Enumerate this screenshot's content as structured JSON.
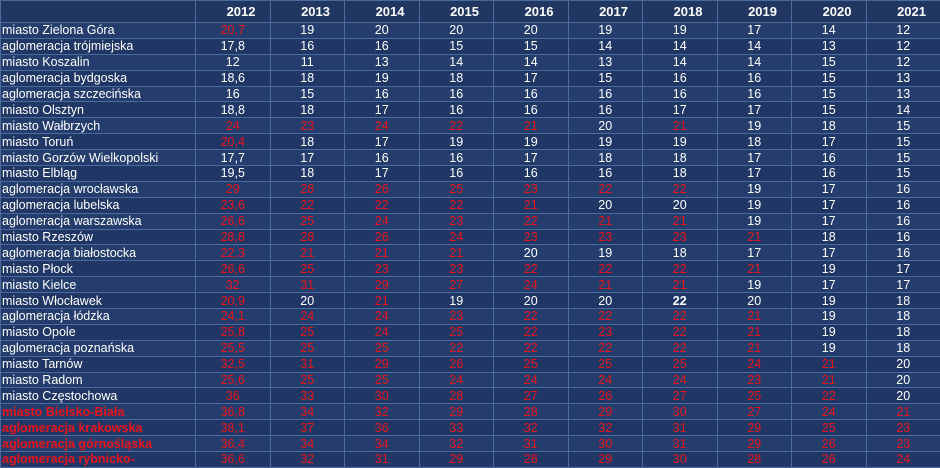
{
  "table": {
    "corner": "",
    "years": [
      "2012",
      "2013",
      "2014",
      "2015",
      "2016",
      "2017",
      "2018",
      "2019",
      "2020",
      "2021"
    ],
    "rows": [
      {
        "name": "miasto Zielona Góra",
        "name_red": false,
        "values": [
          "20,7",
          "19",
          "20",
          "20",
          "20",
          "19",
          "19",
          "17",
          "14",
          "12"
        ],
        "red": [
          true,
          false,
          false,
          false,
          false,
          false,
          false,
          false,
          false,
          false
        ]
      },
      {
        "name": " aglomeracja trójmiejska",
        "name_red": false,
        "values": [
          "17,8",
          "16",
          "16",
          "15",
          "15",
          "14",
          "14",
          "14",
          "13",
          "12"
        ],
        "red": [
          false,
          false,
          false,
          false,
          false,
          false,
          false,
          false,
          false,
          false
        ]
      },
      {
        "name": "miasto Koszalin",
        "name_red": false,
        "values": [
          "12",
          "11",
          "13",
          "14",
          "14",
          "13",
          "14",
          "14",
          "15",
          "12"
        ],
        "red": [
          false,
          false,
          false,
          false,
          false,
          false,
          false,
          false,
          false,
          false
        ]
      },
      {
        "name": "aglomeracja bydgoska",
        "name_red": false,
        "values": [
          "18,6",
          "18",
          "19",
          "18",
          "17",
          "15",
          "16",
          "16",
          "15",
          "13"
        ],
        "red": [
          false,
          false,
          false,
          false,
          false,
          false,
          false,
          false,
          false,
          false
        ]
      },
      {
        "name": "aglomeracja szczecińska",
        "name_red": false,
        "values": [
          "16",
          "15",
          "16",
          "16",
          "16",
          "16",
          "16",
          "16",
          "15",
          "13"
        ],
        "red": [
          false,
          false,
          false,
          false,
          false,
          false,
          false,
          false,
          false,
          false
        ]
      },
      {
        "name": " miasto Olsztyn",
        "name_red": false,
        "values": [
          "18,8",
          "18",
          "17",
          "16",
          "16",
          "16",
          "17",
          "17",
          "15",
          "14"
        ],
        "red": [
          false,
          false,
          false,
          false,
          false,
          false,
          false,
          false,
          false,
          false
        ]
      },
      {
        "name": "miasto Wałbrzych",
        "name_red": false,
        "values": [
          "24",
          "23",
          "24",
          "22",
          "21",
          "20",
          "21",
          "19",
          "18",
          "15"
        ],
        "red": [
          true,
          true,
          true,
          true,
          true,
          false,
          true,
          false,
          false,
          false
        ]
      },
      {
        "name": "miasto Toruń",
        "name_red": false,
        "values": [
          "20,4",
          "18",
          "17",
          "19",
          "19",
          "19",
          "19",
          "18",
          "17",
          "15"
        ],
        "red": [
          true,
          false,
          false,
          false,
          false,
          false,
          false,
          false,
          false,
          false
        ]
      },
      {
        "name": " miasto Gorzów Wielkopolski",
        "name_red": false,
        "values": [
          "17,7",
          "17",
          "16",
          "16",
          "17",
          "18",
          "18",
          "17",
          "16",
          "15"
        ],
        "red": [
          false,
          false,
          false,
          false,
          false,
          false,
          false,
          false,
          false,
          false
        ]
      },
      {
        "name": " miasto Elbląg",
        "name_red": false,
        "values": [
          "19,5",
          "18",
          "17",
          "16",
          "16",
          "16",
          "18",
          "17",
          "16",
          "15"
        ],
        "red": [
          false,
          false,
          false,
          false,
          false,
          false,
          false,
          false,
          false,
          false
        ]
      },
      {
        "name": "aglomeracja wrocławska",
        "name_red": false,
        "values": [
          "29",
          "28",
          "26",
          "25",
          "23",
          "22",
          "22",
          "19",
          "17",
          "16"
        ],
        "red": [
          true,
          true,
          true,
          true,
          true,
          true,
          true,
          false,
          false,
          false
        ]
      },
      {
        "name": "aglomeracja lubelska",
        "name_red": false,
        "values": [
          "23,6",
          "22",
          "22",
          "22",
          "21",
          "20",
          "20",
          "19",
          "17",
          "16"
        ],
        "red": [
          true,
          true,
          true,
          true,
          true,
          false,
          false,
          false,
          false,
          false
        ]
      },
      {
        "name": "aglomeracja warszawska",
        "name_red": false,
        "values": [
          "26,6",
          "25",
          "24",
          "23",
          "22",
          "21",
          "21",
          "19",
          "17",
          "16"
        ],
        "red": [
          true,
          true,
          true,
          true,
          true,
          true,
          true,
          false,
          false,
          false
        ]
      },
      {
        "name": "miasto Rzeszów",
        "name_red": false,
        "values": [
          "28,8",
          "28",
          "26",
          "24",
          "23",
          "23",
          "23",
          "21",
          "18",
          "16"
        ],
        "red": [
          true,
          true,
          true,
          true,
          true,
          true,
          true,
          true,
          false,
          false
        ]
      },
      {
        "name": "aglomeracja białostocka",
        "name_red": false,
        "values": [
          "22,3",
          "21",
          "21",
          "21",
          "20",
          "19",
          "18",
          "17",
          "17",
          "16"
        ],
        "red": [
          true,
          true,
          true,
          true,
          false,
          false,
          false,
          false,
          false,
          false
        ]
      },
      {
        "name": "miasto Płock",
        "name_red": false,
        "values": [
          "26,6",
          "25",
          "23",
          "23",
          "22",
          "22",
          "22",
          "21",
          "19",
          "17"
        ],
        "red": [
          true,
          true,
          true,
          true,
          true,
          true,
          true,
          true,
          false,
          false
        ]
      },
      {
        "name": "miasto Kielce",
        "name_red": false,
        "values": [
          "32",
          "31",
          "29",
          "27",
          "24",
          "21",
          "21",
          "19",
          "17",
          "17"
        ],
        "red": [
          true,
          true,
          true,
          true,
          true,
          true,
          true,
          false,
          false,
          false
        ]
      },
      {
        "name": " miasto Włocławek",
        "name_red": false,
        "values": [
          "20,9",
          "20",
          "21",
          "19",
          "20",
          "20",
          "22",
          "20",
          "19",
          "18"
        ],
        "red": [
          true,
          false,
          true,
          false,
          false,
          false,
          false,
          false,
          false,
          false
        ],
        "bold": [
          false,
          false,
          false,
          false,
          false,
          false,
          true,
          false,
          false,
          false
        ]
      },
      {
        "name": "aglomeracja łódzka",
        "name_red": false,
        "values": [
          "24,1",
          "24",
          "24",
          "23",
          "22",
          "22",
          "22",
          "21",
          "19",
          "18"
        ],
        "red": [
          true,
          true,
          true,
          true,
          true,
          true,
          true,
          true,
          false,
          false
        ]
      },
      {
        "name": "miasto Opole",
        "name_red": false,
        "values": [
          "25,8",
          "25",
          "24",
          "25",
          "22",
          "23",
          "22",
          "21",
          "19",
          "18"
        ],
        "red": [
          true,
          true,
          true,
          true,
          true,
          true,
          true,
          true,
          false,
          false
        ]
      },
      {
        "name": "aglomeracja poznańska",
        "name_red": false,
        "values": [
          "25,5",
          "25",
          "25",
          "22",
          "22",
          "22",
          "22",
          "21",
          "19",
          "18"
        ],
        "red": [
          true,
          true,
          true,
          true,
          true,
          true,
          true,
          true,
          false,
          false
        ]
      },
      {
        "name": "miasto Tarnów",
        "name_red": false,
        "values": [
          "32,5",
          "31",
          "29",
          "26",
          "25",
          "25",
          "25",
          "24",
          "21",
          "20"
        ],
        "red": [
          true,
          true,
          true,
          true,
          true,
          true,
          true,
          true,
          true,
          false
        ]
      },
      {
        "name": "miasto Radom",
        "name_red": false,
        "values": [
          "25,6",
          "25",
          "25",
          "24",
          "24",
          "24",
          "24",
          "23",
          "21",
          "20"
        ],
        "red": [
          true,
          true,
          true,
          true,
          true,
          true,
          true,
          true,
          true,
          false
        ]
      },
      {
        "name": "miasto Częstochowa",
        "name_red": false,
        "values": [
          "36",
          "33",
          "30",
          "28",
          "27",
          "26",
          "27",
          "25",
          "22",
          "20"
        ],
        "red": [
          true,
          true,
          true,
          true,
          true,
          true,
          true,
          true,
          true,
          false
        ]
      },
      {
        "name": "miasto Bielsko-Biała",
        "name_red": true,
        "values": [
          "36,8",
          "34",
          "32",
          "29",
          "28",
          "29",
          "30",
          "27",
          "24",
          "21"
        ],
        "red": [
          true,
          true,
          true,
          true,
          true,
          true,
          true,
          true,
          true,
          true
        ]
      },
      {
        "name": "aglomeracja krakowska",
        "name_red": true,
        "values": [
          "38,1",
          "37",
          "36",
          "33",
          "32",
          "32",
          "31",
          "29",
          "25",
          "23"
        ],
        "red": [
          true,
          true,
          true,
          true,
          true,
          true,
          true,
          true,
          true,
          true
        ]
      },
      {
        "name": "aglomeracja górnośląska",
        "name_red": true,
        "values": [
          "36,4",
          "34",
          "34",
          "32",
          "31",
          "30",
          "31",
          "29",
          "26",
          "23"
        ],
        "red": [
          true,
          true,
          true,
          true,
          true,
          true,
          true,
          true,
          true,
          true
        ]
      },
      {
        "name": "aglomeracja rybnicko-",
        "name_red": true,
        "values": [
          "36,6",
          "32",
          "31",
          "29",
          "28",
          "29",
          "30",
          "28",
          "26",
          "24"
        ],
        "red": [
          true,
          true,
          true,
          true,
          true,
          true,
          true,
          true,
          true,
          true
        ]
      }
    ]
  }
}
